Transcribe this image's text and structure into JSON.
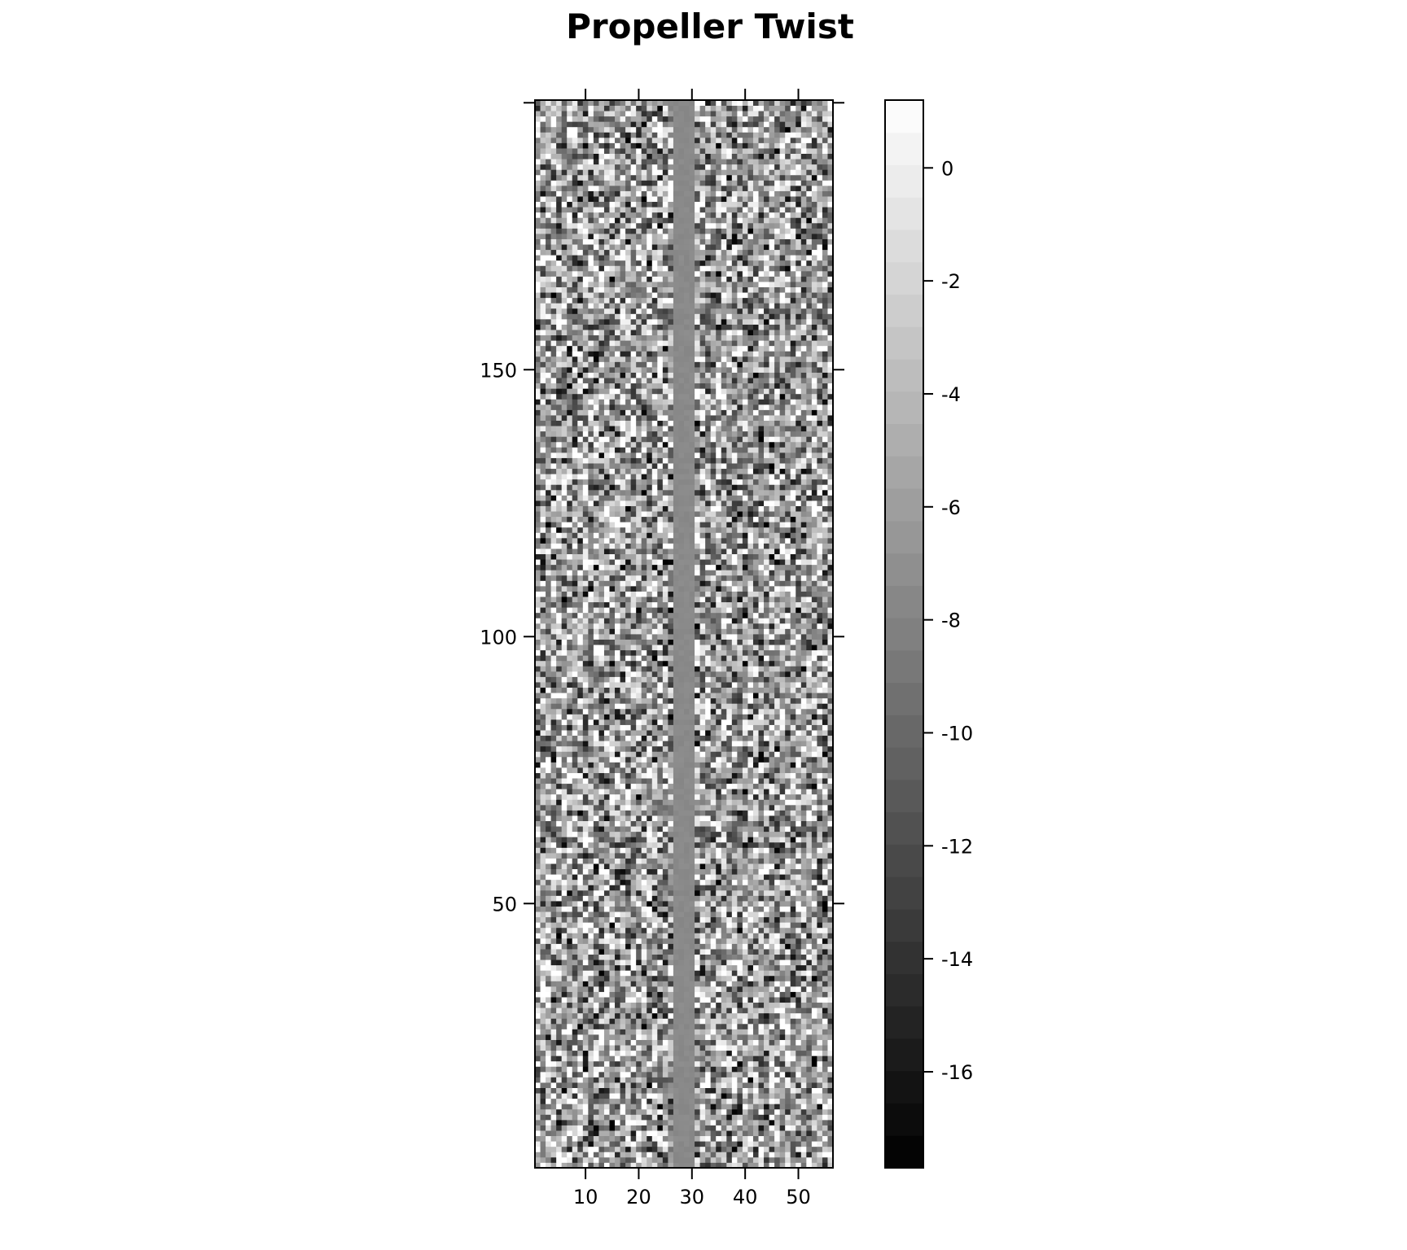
{
  "chart_data": {
    "type": "heatmap",
    "title": "Propeller Twist",
    "xlabel": "",
    "ylabel": "",
    "n_columns": 56,
    "n_rows": 200,
    "xlim": [
      0.5,
      56.5
    ],
    "ylim": [
      0.5,
      200.5
    ],
    "x_ticks": [
      10,
      20,
      30,
      40,
      50
    ],
    "y_ticks": [
      50,
      100,
      150
    ],
    "uniform_band": {
      "columns": [
        27,
        28,
        29,
        30
      ],
      "value": -7.5
    },
    "value_range": [
      -17.7,
      1.2
    ],
    "colorbar": {
      "ticks": [
        0,
        -2,
        -4,
        -6,
        -8,
        -10,
        -12,
        -14,
        -16
      ],
      "min": -17.7,
      "max": 1.2,
      "levels": 33
    },
    "colors": {
      "low": "#000000",
      "high": "#ffffff"
    },
    "colormap": "grayscale"
  }
}
